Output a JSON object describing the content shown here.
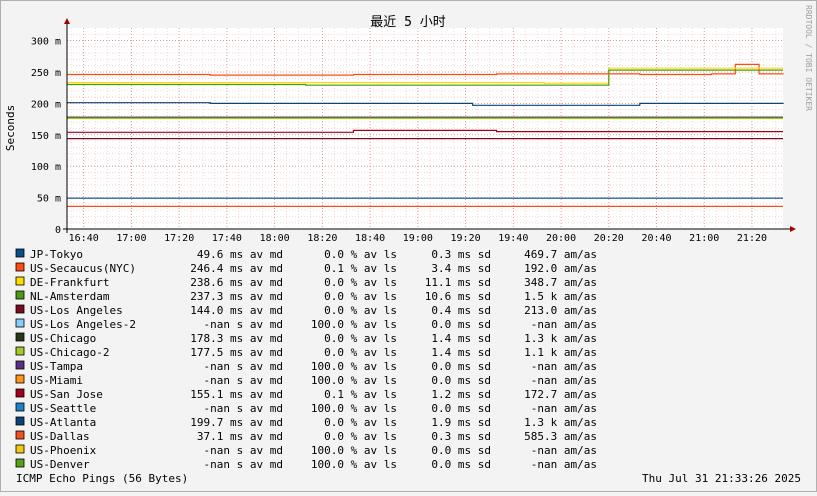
{
  "chart_data": {
    "type": "line",
    "title": "最近 5 小时",
    "ylabel": "Seconds",
    "watermark": "RRDTOOL / TOBI OETIKER",
    "footer_left": "ICMP Echo Pings (56 Bytes)",
    "footer_right": "Thu Jul 31 21:33:26 2025",
    "ylim": [
      0,
      0.32
    ],
    "y_ticks": [
      {
        "v": 0,
        "label": "0"
      },
      {
        "v": 0.05,
        "label": "50 m"
      },
      {
        "v": 0.1,
        "label": "100 m"
      },
      {
        "v": 0.15,
        "label": "150 m"
      },
      {
        "v": 0.2,
        "label": "200 m"
      },
      {
        "v": 0.25,
        "label": "250 m"
      },
      {
        "v": 0.3,
        "label": "300 m"
      }
    ],
    "x_range": [
      "16:33",
      "21:33"
    ],
    "x_ticks": [
      "16:40",
      "17:00",
      "17:20",
      "17:40",
      "18:00",
      "18:20",
      "18:40",
      "19:00",
      "19:20",
      "19:40",
      "20:00",
      "20:20",
      "20:40",
      "21:00",
      "21:20"
    ],
    "grid": true,
    "series": [
      {
        "name": "JP-Tokyo",
        "color": "#0b4c8b",
        "avg": "49.6 ms av md",
        "loss": "0.0 % av ls",
        "sd": "0.3 ms sd",
        "ratio": "469.7   am/as",
        "values": [
          [
            0,
            0.049
          ],
          [
            300,
            0.049
          ]
        ]
      },
      {
        "name": "US-Secaucus(NYC)",
        "color": "#ff4a10",
        "avg": "246.4 ms av md",
        "loss": "0.1 % av ls",
        "sd": "3.4 ms sd",
        "ratio": "192.0   am/as",
        "values": [
          [
            0,
            0.246
          ],
          [
            60,
            0.245
          ],
          [
            120,
            0.246
          ],
          [
            180,
            0.247
          ],
          [
            240,
            0.246
          ],
          [
            270,
            0.247
          ],
          [
            280,
            0.262
          ],
          [
            290,
            0.247
          ],
          [
            300,
            0.246
          ]
        ]
      },
      {
        "name": "DE-Frankfurt",
        "color": "#ffdb00",
        "avg": "238.6 ms av md",
        "loss": "0.0 % av ls",
        "sd": "11.1 ms sd",
        "ratio": "348.7   am/as",
        "values": [
          [
            0,
            0.233
          ],
          [
            100,
            0.233
          ],
          [
            200,
            0.232
          ],
          [
            227,
            0.232
          ],
          [
            227,
            0.256
          ],
          [
            300,
            0.256
          ]
        ]
      },
      {
        "name": "NL-Amsterdam",
        "color": "#4c9a14",
        "avg": "237.3 ms av md",
        "loss": "0.0 % av ls",
        "sd": "10.6 ms sd",
        "ratio": "1.5 k am/as",
        "values": [
          [
            0,
            0.23
          ],
          [
            100,
            0.229
          ],
          [
            200,
            0.229
          ],
          [
            227,
            0.229
          ],
          [
            227,
            0.253
          ],
          [
            300,
            0.253
          ]
        ]
      },
      {
        "name": "US-Los Angeles",
        "color": "#7a0b23",
        "avg": "144.0 ms av md",
        "loss": "0.0 % av ls",
        "sd": "0.4 ms sd",
        "ratio": "213.0   am/as",
        "values": [
          [
            0,
            0.144
          ],
          [
            300,
            0.144
          ]
        ]
      },
      {
        "name": "US-Los Angeles-2",
        "color": "#87cefa",
        "avg": "-nan  s av md",
        "loss": "100.0 % av ls",
        "sd": "0.0 ms sd",
        "ratio": "-nan   am/as",
        "values": []
      },
      {
        "name": "US-Chicago",
        "color": "#29361a",
        "avg": "178.3 ms av md",
        "loss": "0.0 % av ls",
        "sd": "1.4 ms sd",
        "ratio": "1.3 k am/as",
        "values": [
          [
            0,
            0.178
          ],
          [
            300,
            0.178
          ]
        ]
      },
      {
        "name": "US-Chicago-2",
        "color": "#a5c829",
        "avg": "177.5 ms av md",
        "loss": "0.0 % av ls",
        "sd": "1.4 ms sd",
        "ratio": "1.1 k am/as",
        "values": [
          [
            0,
            0.176
          ],
          [
            300,
            0.176
          ]
        ]
      },
      {
        "name": "US-Tampa",
        "color": "#5b2b86",
        "avg": "-nan  s av md",
        "loss": "100.0 % av ls",
        "sd": "0.0 ms sd",
        "ratio": "-nan   am/as",
        "values": []
      },
      {
        "name": "US-Miami",
        "color": "#ff9519",
        "avg": "-nan  s av md",
        "loss": "100.0 % av ls",
        "sd": "0.0 ms sd",
        "ratio": "-nan   am/as",
        "values": []
      },
      {
        "name": "US-San Jose",
        "color": "#a3001c",
        "avg": "155.1 ms av md",
        "loss": "0.1 % av ls",
        "sd": "1.2 ms sd",
        "ratio": "172.7   am/as",
        "values": [
          [
            0,
            0.154
          ],
          [
            60,
            0.154
          ],
          [
            120,
            0.157
          ],
          [
            180,
            0.155
          ],
          [
            240,
            0.155
          ],
          [
            300,
            0.155
          ]
        ]
      },
      {
        "name": "US-Seattle",
        "color": "#1f82c8",
        "avg": "-nan  s av md",
        "loss": "100.0 % av ls",
        "sd": "0.0 ms sd",
        "ratio": "-nan   am/as",
        "values": []
      },
      {
        "name": "US-Atlanta",
        "color": "#0d4478",
        "avg": "199.7 ms av md",
        "loss": "0.0 % av ls",
        "sd": "1.9 ms sd",
        "ratio": "1.3 k am/as",
        "values": [
          [
            0,
            0.201
          ],
          [
            60,
            0.2
          ],
          [
            120,
            0.2
          ],
          [
            170,
            0.197
          ],
          [
            240,
            0.2
          ],
          [
            300,
            0.201
          ]
        ]
      },
      {
        "name": "US-Dallas",
        "color": "#f05022",
        "avg": "37.1 ms av md",
        "loss": "0.0 % av ls",
        "sd": "0.3 ms sd",
        "ratio": "585.3   am/as",
        "values": [
          [
            0,
            0.036
          ],
          [
            300,
            0.036
          ]
        ]
      },
      {
        "name": "US-Phoenix",
        "color": "#f2ca10",
        "avg": "-nan  s av md",
        "loss": "100.0 % av ls",
        "sd": "0.0 ms sd",
        "ratio": "-nan   am/as",
        "values": []
      },
      {
        "name": "US-Denver",
        "color": "#56a01b",
        "avg": "-nan  s av md",
        "loss": "100.0 % av ls",
        "sd": "0.0 ms sd",
        "ratio": "-nan   am/as",
        "values": []
      }
    ]
  }
}
